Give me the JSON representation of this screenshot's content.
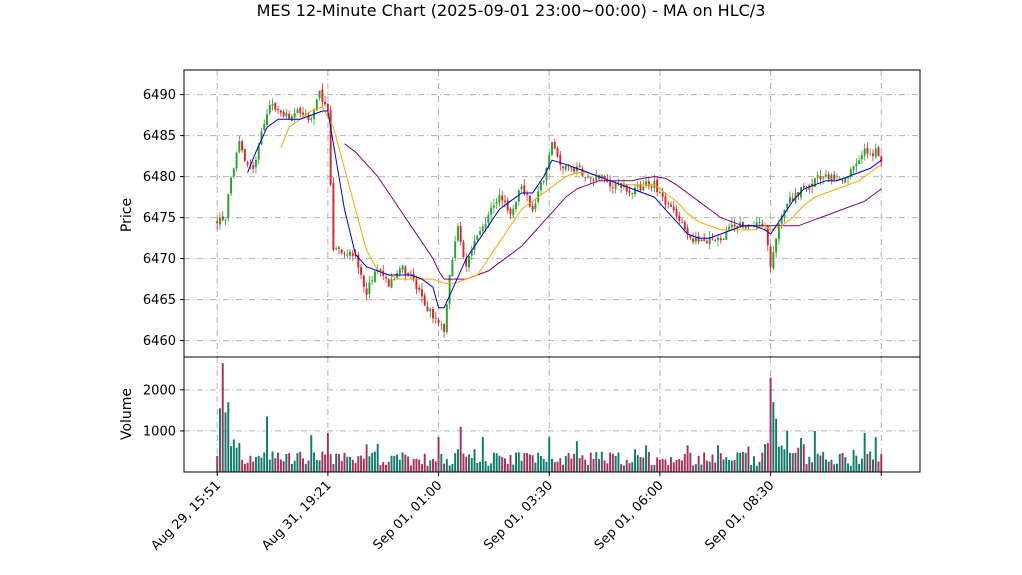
{
  "chart_data": {
    "type": "candlestick",
    "title": "MES 12-Minute Chart (2025-09-01 23:00~00:00) - MA on HLC/3",
    "price_panel": {
      "ylabel": "Price",
      "ylim": [
        6458,
        6493
      ],
      "yticks": [
        6460,
        6465,
        6470,
        6475,
        6480,
        6485,
        6490
      ],
      "grid": true
    },
    "volume_panel": {
      "ylabel": "Volume",
      "ylim": [
        0,
        2800
      ],
      "yticks": [
        1000,
        2000
      ],
      "ytick_labels": [
        "1000",
        "2000"
      ],
      "grid": true
    },
    "x_range": [
      -12,
      254
    ],
    "x_ticks": [
      {
        "pos": 0,
        "label": "Aug 29, 15:51"
      },
      {
        "pos": 40,
        "label": "Aug 31, 19:21"
      },
      {
        "pos": 80,
        "label": "Sep 01, 01:00"
      },
      {
        "pos": 120,
        "label": "Sep 01, 03:30"
      },
      {
        "pos": 160,
        "label": "Sep 01, 06:00"
      },
      {
        "pos": 200,
        "label": "Sep 01, 08:30"
      },
      {
        "pos": 240,
        "label": ""
      }
    ],
    "colors": {
      "up": "#2ca02c",
      "down": "#d62728",
      "vol_up": "#127a6c",
      "vol_down": "#a3325a",
      "ma_fast": "#0000cc",
      "ma_mid": "#ffa500",
      "ma_slow": "#800080"
    },
    "price_path": [
      [
        0,
        6474.5
      ],
      [
        3,
        6475
      ],
      [
        5,
        6480
      ],
      [
        8,
        6484
      ],
      [
        10,
        6482
      ],
      [
        13,
        6481
      ],
      [
        16,
        6485
      ],
      [
        19,
        6489
      ],
      [
        22,
        6488
      ],
      [
        26,
        6487
      ],
      [
        30,
        6488
      ],
      [
        34,
        6487
      ],
      [
        37,
        6490
      ],
      [
        40,
        6488
      ],
      [
        42,
        6471
      ],
      [
        46,
        6471
      ],
      [
        50,
        6470
      ],
      [
        54,
        6466
      ],
      [
        58,
        6469
      ],
      [
        62,
        6467
      ],
      [
        66,
        6469
      ],
      [
        70,
        6468
      ],
      [
        74,
        6465
      ],
      [
        78,
        6463
      ],
      [
        82,
        6461
      ],
      [
        84,
        6468
      ],
      [
        87,
        6474
      ],
      [
        90,
        6469
      ],
      [
        94,
        6473
      ],
      [
        98,
        6475
      ],
      [
        102,
        6478
      ],
      [
        106,
        6475
      ],
      [
        110,
        6479
      ],
      [
        114,
        6476
      ],
      [
        118,
        6480
      ],
      [
        121,
        6484
      ],
      [
        125,
        6481
      ],
      [
        130,
        6481
      ],
      [
        134,
        6480
      ],
      [
        138,
        6480
      ],
      [
        142,
        6479
      ],
      [
        146,
        6479
      ],
      [
        150,
        6478
      ],
      [
        154,
        6479
      ],
      [
        158,
        6479
      ],
      [
        162,
        6477
      ],
      [
        166,
        6475
      ],
      [
        170,
        6473
      ],
      [
        174,
        6472
      ],
      [
        178,
        6472.5
      ],
      [
        182,
        6472
      ],
      [
        186,
        6474
      ],
      [
        190,
        6474
      ],
      [
        194,
        6474
      ],
      [
        198,
        6474
      ],
      [
        200,
        6469
      ],
      [
        203,
        6474
      ],
      [
        206,
        6477
      ],
      [
        210,
        6478
      ],
      [
        214,
        6479
      ],
      [
        218,
        6480
      ],
      [
        222,
        6480
      ],
      [
        226,
        6479
      ],
      [
        230,
        6481
      ],
      [
        234,
        6483
      ],
      [
        238,
        6483
      ],
      [
        240,
        6482
      ]
    ],
    "volume_spikes": [
      [
        1,
        1550
      ],
      [
        2,
        2650
      ],
      [
        3,
        1450
      ],
      [
        4,
        1700
      ],
      [
        18,
        1350
      ],
      [
        34,
        900
      ],
      [
        40,
        950
      ],
      [
        80,
        850
      ],
      [
        88,
        1100
      ],
      [
        96,
        850
      ],
      [
        120,
        850
      ],
      [
        130,
        750
      ],
      [
        155,
        650
      ],
      [
        170,
        650
      ],
      [
        200,
        2300
      ],
      [
        201,
        1700
      ],
      [
        202,
        1300
      ],
      [
        206,
        1000
      ],
      [
        216,
        1000
      ],
      [
        234,
        950
      ],
      [
        238,
        850
      ]
    ],
    "ma_fast": [
      [
        11,
        6480.5
      ],
      [
        14,
        6483
      ],
      [
        18,
        6486
      ],
      [
        22,
        6487
      ],
      [
        26,
        6487
      ],
      [
        30,
        6487
      ],
      [
        34,
        6487.5
      ],
      [
        38,
        6488
      ],
      [
        40,
        6488
      ],
      [
        42,
        6484
      ],
      [
        46,
        6476
      ],
      [
        50,
        6470.5
      ],
      [
        54,
        6469
      ],
      [
        58,
        6468.5
      ],
      [
        62,
        6468
      ],
      [
        66,
        6468
      ],
      [
        70,
        6468
      ],
      [
        74,
        6467.5
      ],
      [
        78,
        6466.5
      ],
      [
        80,
        6464
      ],
      [
        82,
        6464
      ],
      [
        86,
        6467
      ],
      [
        90,
        6470
      ],
      [
        94,
        6472
      ],
      [
        98,
        6474
      ],
      [
        102,
        6476
      ],
      [
        106,
        6477
      ],
      [
        110,
        6478
      ],
      [
        114,
        6478
      ],
      [
        118,
        6480
      ],
      [
        121,
        6482
      ],
      [
        126,
        6481.5
      ],
      [
        130,
        6481
      ],
      [
        134,
        6480.5
      ],
      [
        138,
        6480
      ],
      [
        142,
        6479.5
      ],
      [
        146,
        6479
      ],
      [
        150,
        6478.5
      ],
      [
        154,
        6478
      ],
      [
        158,
        6477.5
      ],
      [
        162,
        6476
      ],
      [
        166,
        6474.5
      ],
      [
        170,
        6473
      ],
      [
        174,
        6472.5
      ],
      [
        178,
        6472.5
      ],
      [
        182,
        6473
      ],
      [
        186,
        6473.5
      ],
      [
        190,
        6474
      ],
      [
        194,
        6474
      ],
      [
        198,
        6473.5
      ],
      [
        200,
        6473
      ],
      [
        204,
        6475
      ],
      [
        208,
        6477
      ],
      [
        212,
        6478.5
      ],
      [
        216,
        6479
      ],
      [
        220,
        6479.5
      ],
      [
        224,
        6479.5
      ],
      [
        228,
        6480
      ],
      [
        232,
        6480.5
      ],
      [
        236,
        6481
      ],
      [
        240,
        6482
      ]
    ],
    "ma_mid": [
      [
        23,
        6483.5
      ],
      [
        26,
        6486
      ],
      [
        30,
        6487
      ],
      [
        34,
        6488
      ],
      [
        38,
        6488.5
      ],
      [
        42,
        6486
      ],
      [
        46,
        6481
      ],
      [
        50,
        6476
      ],
      [
        54,
        6471
      ],
      [
        58,
        6468.5
      ],
      [
        62,
        6468
      ],
      [
        66,
        6467.5
      ],
      [
        70,
        6467.5
      ],
      [
        74,
        6467.5
      ],
      [
        78,
        6467.5
      ],
      [
        82,
        6467
      ],
      [
        86,
        6467
      ],
      [
        90,
        6467.5
      ],
      [
        94,
        6468
      ],
      [
        98,
        6470
      ],
      [
        102,
        6472
      ],
      [
        106,
        6474
      ],
      [
        110,
        6476
      ],
      [
        114,
        6477
      ],
      [
        118,
        6478
      ],
      [
        122,
        6479
      ],
      [
        126,
        6480
      ],
      [
        130,
        6480.5
      ],
      [
        134,
        6480.5
      ],
      [
        138,
        6480
      ],
      [
        142,
        6479.5
      ],
      [
        146,
        6479
      ],
      [
        150,
        6479
      ],
      [
        154,
        6479
      ],
      [
        158,
        6479
      ],
      [
        162,
        6478
      ],
      [
        166,
        6477
      ],
      [
        170,
        6475.5
      ],
      [
        174,
        6474.5
      ],
      [
        178,
        6474
      ],
      [
        182,
        6473.5
      ],
      [
        186,
        6473.5
      ],
      [
        190,
        6473.5
      ],
      [
        194,
        6473.5
      ],
      [
        198,
        6474
      ],
      [
        200,
        6473.5
      ],
      [
        204,
        6474
      ],
      [
        208,
        6475
      ],
      [
        212,
        6476.5
      ],
      [
        216,
        6477.5
      ],
      [
        220,
        6478
      ],
      [
        224,
        6478.5
      ],
      [
        228,
        6479
      ],
      [
        232,
        6479.5
      ],
      [
        236,
        6480.5
      ],
      [
        240,
        6481.5
      ]
    ],
    "ma_slow": [
      [
        46,
        6484
      ],
      [
        50,
        6483
      ],
      [
        54,
        6481.5
      ],
      [
        58,
        6480
      ],
      [
        62,
        6478
      ],
      [
        66,
        6476
      ],
      [
        70,
        6474
      ],
      [
        74,
        6472
      ],
      [
        78,
        6470
      ],
      [
        80,
        6468.5
      ],
      [
        82,
        6467.5
      ],
      [
        86,
        6467.5
      ],
      [
        90,
        6467.5
      ],
      [
        94,
        6468
      ],
      [
        98,
        6468.5
      ],
      [
        102,
        6469.5
      ],
      [
        106,
        6470.5
      ],
      [
        110,
        6471.5
      ],
      [
        114,
        6473
      ],
      [
        118,
        6474.5
      ],
      [
        122,
        6476
      ],
      [
        126,
        6477.5
      ],
      [
        130,
        6478.5
      ],
      [
        134,
        6479
      ],
      [
        138,
        6479.5
      ],
      [
        142,
        6479.5
      ],
      [
        146,
        6479.5
      ],
      [
        150,
        6479.5
      ],
      [
        154,
        6479.8
      ],
      [
        158,
        6480
      ],
      [
        162,
        6479.8
      ],
      [
        166,
        6479
      ],
      [
        170,
        6478
      ],
      [
        174,
        6477
      ],
      [
        178,
        6476
      ],
      [
        182,
        6475
      ],
      [
        186,
        6474.5
      ],
      [
        190,
        6474
      ],
      [
        194,
        6474
      ],
      [
        198,
        6474
      ],
      [
        202,
        6474
      ],
      [
        206,
        6474
      ],
      [
        210,
        6474
      ],
      [
        214,
        6474.5
      ],
      [
        218,
        6475
      ],
      [
        222,
        6475.5
      ],
      [
        226,
        6476
      ],
      [
        230,
        6476.5
      ],
      [
        234,
        6477
      ],
      [
        238,
        6478
      ],
      [
        240,
        6478.5
      ]
    ]
  }
}
